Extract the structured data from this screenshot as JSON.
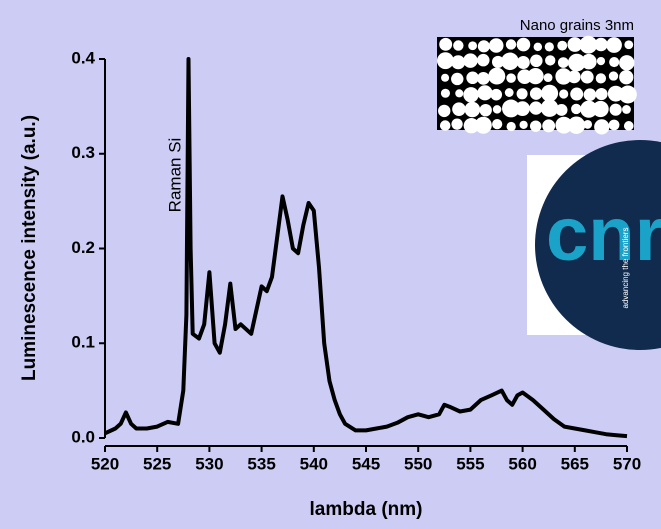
{
  "chart_data": {
    "type": "line",
    "xlabel": "lambda (nm)",
    "ylabel": "Luminescence intensity (a.u.)",
    "annotations": [
      "Raman Si",
      "Nano grains 3nm"
    ],
    "logo": {
      "text": "cnrs",
      "tagline": "advancing the frontiers"
    },
    "x": [
      520,
      521,
      521.5,
      522,
      522.5,
      523,
      524,
      525,
      526,
      527,
      527.5,
      527.8,
      528,
      528.2,
      528.4,
      529,
      529.5,
      530,
      530.5,
      531,
      531.5,
      532,
      532.5,
      533,
      534,
      534.5,
      535,
      535.5,
      536,
      537,
      537.5,
      538,
      538.5,
      539,
      539.5,
      540,
      540.5,
      541,
      541.5,
      542,
      542.5,
      543,
      544,
      545,
      546,
      547,
      548,
      549,
      550,
      551,
      552,
      552.5,
      553,
      554,
      555,
      556,
      557,
      558,
      558.5,
      559,
      559.5,
      560,
      561,
      562,
      563,
      564,
      565,
      566,
      567,
      568,
      569,
      570
    ],
    "values": [
      0.005,
      0.01,
      0.015,
      0.027,
      0.015,
      0.01,
      0.01,
      0.012,
      0.017,
      0.015,
      0.05,
      0.13,
      0.4,
      0.2,
      0.11,
      0.105,
      0.12,
      0.175,
      0.1,
      0.09,
      0.12,
      0.163,
      0.115,
      0.12,
      0.11,
      0.135,
      0.16,
      0.155,
      0.17,
      0.255,
      0.23,
      0.2,
      0.195,
      0.225,
      0.248,
      0.24,
      0.18,
      0.1,
      0.06,
      0.04,
      0.025,
      0.015,
      0.008,
      0.008,
      0.01,
      0.012,
      0.016,
      0.022,
      0.025,
      0.022,
      0.025,
      0.035,
      0.033,
      0.028,
      0.03,
      0.04,
      0.045,
      0.05,
      0.04,
      0.035,
      0.045,
      0.048,
      0.04,
      0.03,
      0.02,
      0.012,
      0.01,
      0.008,
      0.006,
      0.004,
      0.003,
      0.002
    ],
    "color": "#000000",
    "xlim": [
      520,
      570
    ],
    "xticks": [
      520,
      525,
      530,
      535,
      540,
      545,
      550,
      555,
      560,
      565,
      570
    ],
    "ylim": [
      0,
      0.4
    ],
    "yticks": [
      {
        "value": 0,
        "label": "0.0"
      },
      0.1,
      0.2,
      0.3,
      0.4
    ]
  }
}
